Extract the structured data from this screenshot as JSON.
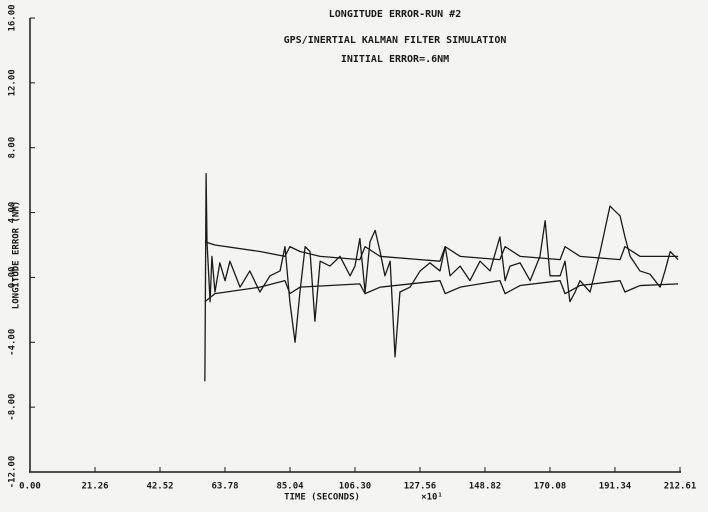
{
  "chart_data": {
    "type": "line",
    "title": "LONGITUDE ERROR-RUN #2",
    "subtitle": [
      "GPS/INERTIAL KALMAN FILTER SIMULATION",
      "INITIAL ERROR=.6NM"
    ],
    "y_label": "LONGITUDE ERROR (NM)",
    "x_label": "TIME  (SECONDS)",
    "x_multiplier": "×10¹",
    "xlim": [
      0,
      212.61
    ],
    "xticks": [
      {
        "value": 0,
        "label": "0.00"
      },
      21.26,
      42.52,
      63.78,
      85.04,
      {
        "value": 106.3,
        "label": "106.30"
      },
      127.56,
      148.82,
      170.08,
      191.34,
      212.61
    ],
    "ylim": [
      -12,
      16
    ],
    "yticks": [
      {
        "value": -12,
        "label": "-12.00"
      },
      {
        "value": -8,
        "label": "-8.00"
      },
      {
        "value": -4,
        "label": "-4.00"
      },
      {
        "value": 0,
        "label": "0.00"
      },
      {
        "value": 4,
        "label": "4.00"
      },
      {
        "value": 8,
        "label": "8.00"
      },
      {
        "value": 12,
        "label": "12.00"
      },
      {
        "value": 16,
        "label": "16.00"
      }
    ],
    "grid": false,
    "series": [
      {
        "color": "#1a1a1a",
        "x": [
          57.2,
          57.6,
          57.9,
          58.9,
          59.5,
          60.5,
          62.1,
          63.8,
          65.4,
          68.7,
          71.9,
          75.2,
          78.5,
          81.8,
          83.4,
          85.0,
          86.7,
          88.3,
          90.0,
          91.6,
          93.2,
          94.9,
          98.1,
          101.4,
          104.7,
          106.3,
          107.9,
          109.6,
          111.2,
          112.9,
          114.5,
          116.1,
          117.8,
          119.4,
          121.0,
          124.3,
          127.6,
          130.8,
          134.1,
          135.8,
          137.4,
          140.7,
          143.9,
          147.2,
          150.5,
          153.7,
          155.4,
          157.0,
          160.3,
          163.6,
          166.8,
          168.5,
          170.1,
          173.4,
          175.0,
          176.6,
          178.3,
          179.9,
          183.2,
          186.5,
          189.7,
          191.3,
          193.0,
          194.6,
          196.3,
          199.5,
          202.8,
          206.1,
          207.7,
          209.4,
          212.0
        ],
        "values": [
          -6.4,
          6.4,
          2.2,
          -1.5,
          1.3,
          -0.9,
          0.9,
          -0.2,
          1.0,
          -0.6,
          0.4,
          -0.9,
          0.1,
          0.4,
          1.9,
          -1.5,
          -4.0,
          -0.9,
          1.9,
          1.6,
          -2.7,
          1.0,
          0.7,
          1.3,
          0.1,
          0.7,
          2.4,
          -0.9,
          2.2,
          2.9,
          1.6,
          0.1,
          1.0,
          -4.9,
          -0.9,
          -0.6,
          0.4,
          0.9,
          0.4,
          1.9,
          0.1,
          0.7,
          -0.2,
          1.0,
          0.4,
          2.5,
          -0.2,
          0.7,
          0.9,
          -0.2,
          1.3,
          3.5,
          0.1,
          0.1,
          1.0,
          -1.5,
          -0.9,
          -0.2,
          -0.9,
          1.6,
          4.4,
          4.1,
          3.8,
          2.5,
          1.3,
          0.4,
          0.2,
          -0.6,
          0.4,
          1.6,
          1.1
        ]
      },
      {
        "color": "#1a1a1a",
        "x": [
          57.2,
          60.5,
          75.2,
          83.4,
          85.0,
          88.3,
          94.9,
          107.9,
          109.6,
          114.5,
          127.6,
          134.1,
          135.8,
          140.7,
          153.7,
          155.4,
          160.3,
          173.4,
          175.0,
          179.9,
          193.0,
          194.6,
          199.5,
          212.0
        ],
        "values": [
          2.2,
          2.0,
          1.6,
          1.3,
          1.9,
          1.6,
          1.3,
          1.1,
          1.9,
          1.3,
          1.1,
          1.0,
          1.9,
          1.3,
          1.1,
          1.9,
          1.3,
          1.1,
          1.9,
          1.3,
          1.1,
          1.9,
          1.3,
          1.3
        ]
      },
      {
        "color": "#1a1a1a",
        "x": [
          57.2,
          60.5,
          75.2,
          83.4,
          85.0,
          88.3,
          107.9,
          109.6,
          114.5,
          134.1,
          135.8,
          140.7,
          153.7,
          155.4,
          160.3,
          173.4,
          175.0,
          179.9,
          193.0,
          194.6,
          199.5,
          212.0
        ],
        "values": [
          -1.5,
          -1.0,
          -0.6,
          -0.2,
          -1.0,
          -0.6,
          -0.4,
          -1.0,
          -0.6,
          -0.2,
          -1.0,
          -0.6,
          -0.2,
          -1.0,
          -0.5,
          -0.2,
          -1.0,
          -0.5,
          -0.2,
          -0.9,
          -0.5,
          -0.4
        ]
      }
    ]
  }
}
